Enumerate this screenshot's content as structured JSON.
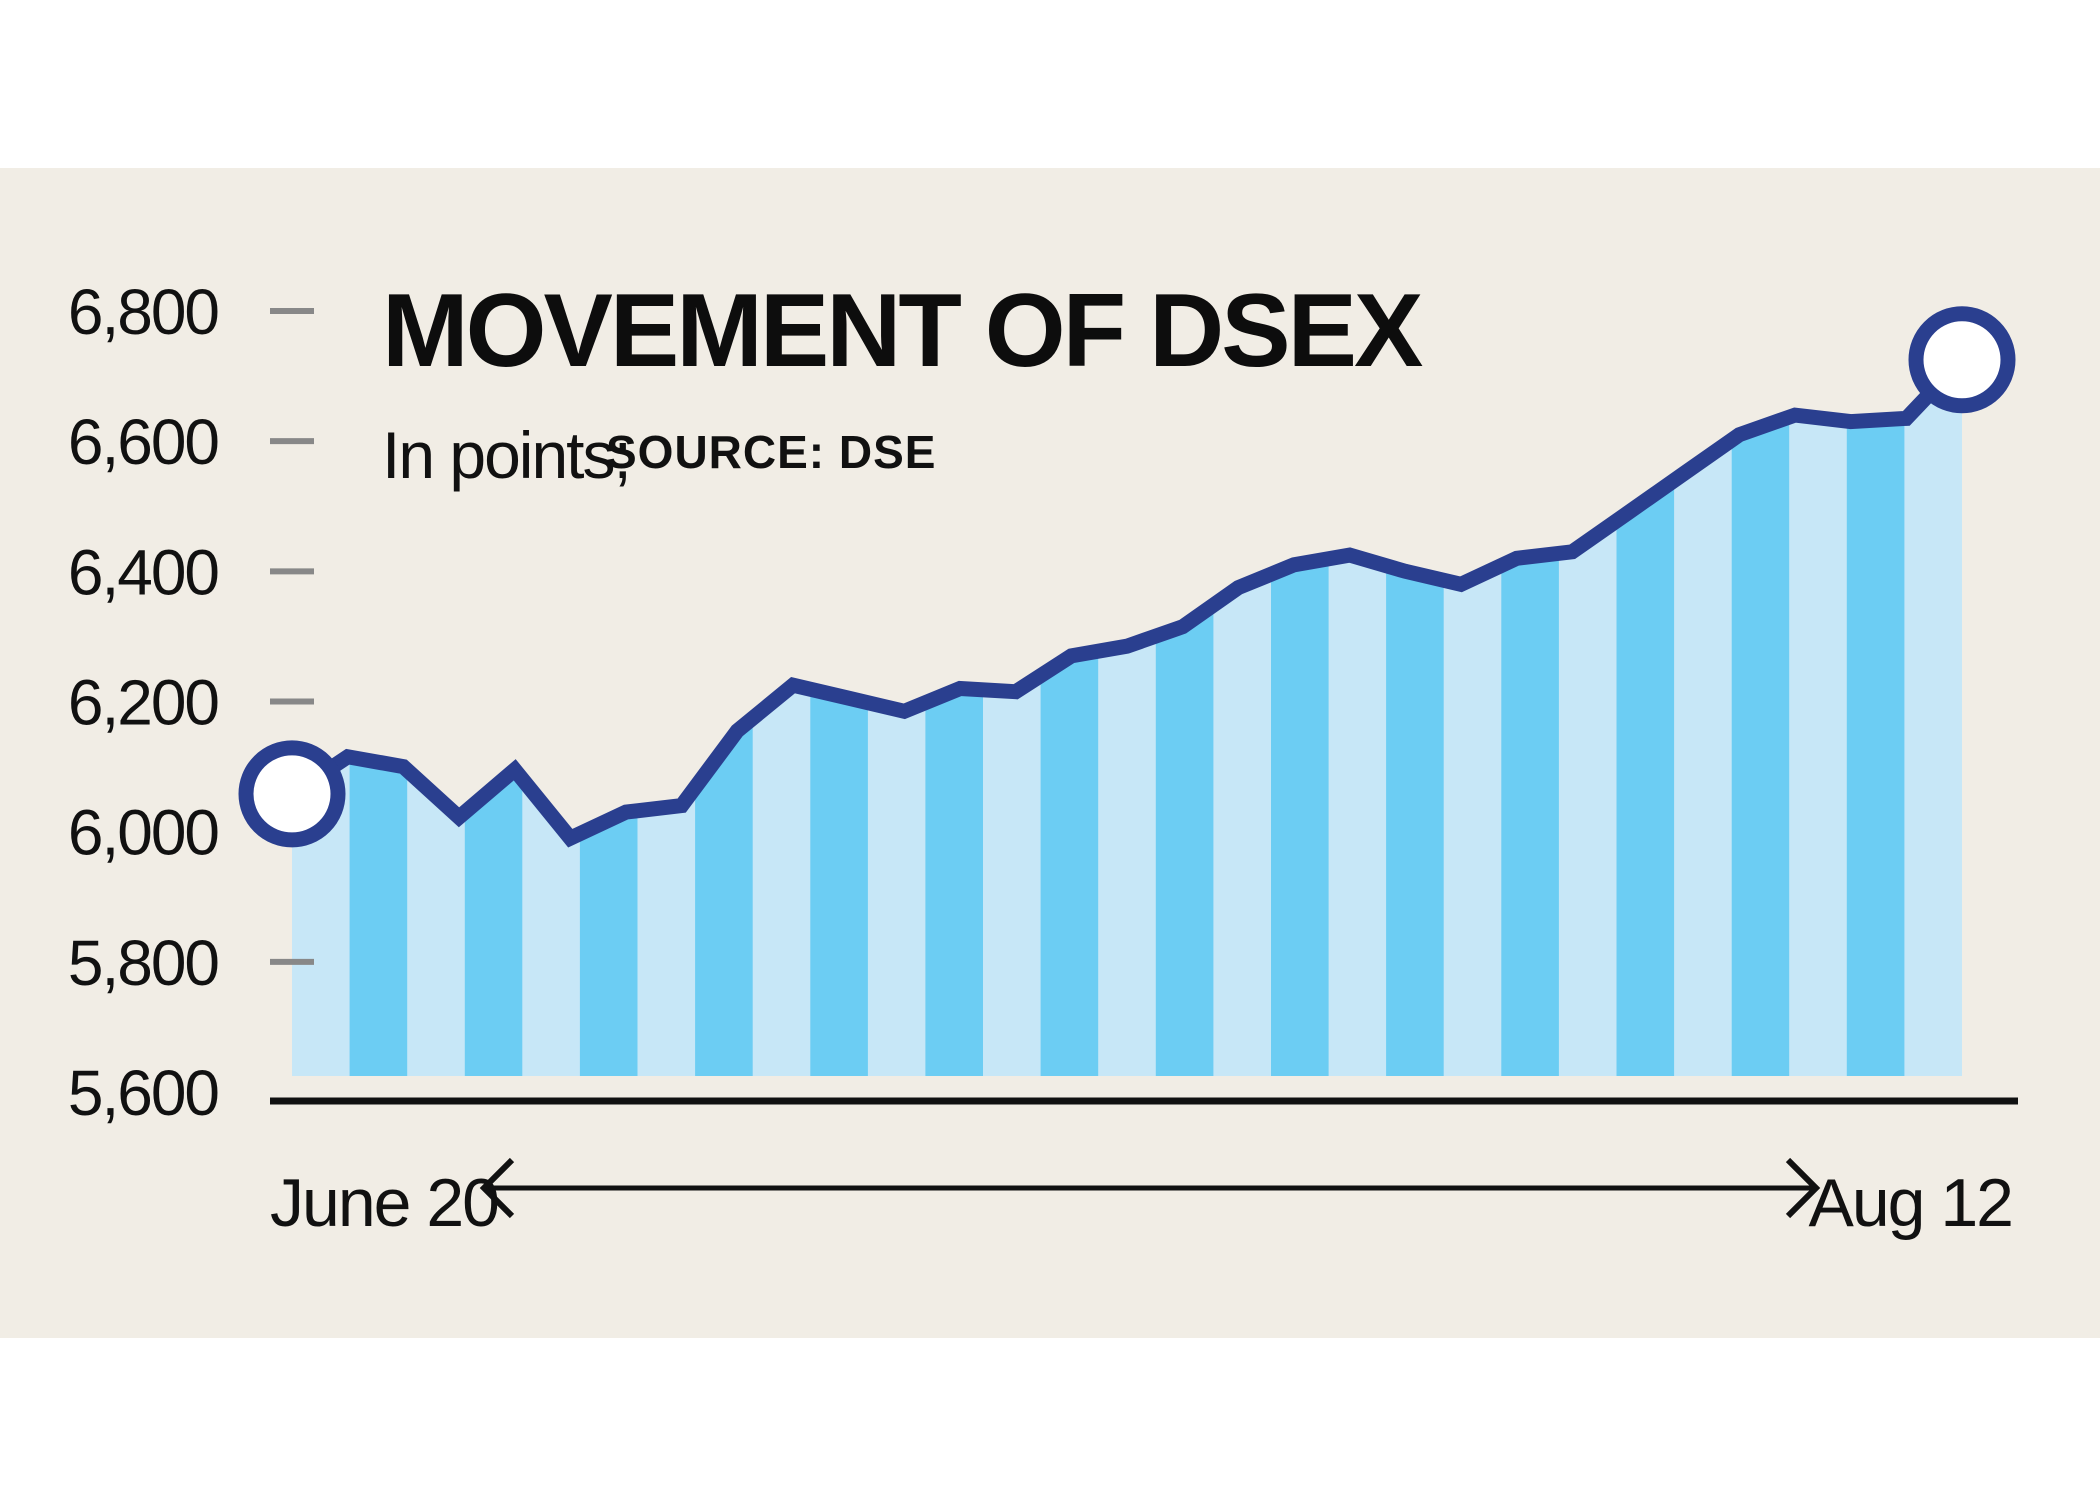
{
  "chart_data": {
    "type": "area",
    "title": "MOVEMENT OF DSEX",
    "subtitle": "In points;",
    "source": "SOURCE: DSE",
    "x_start_label": "June 20",
    "x_end_label": "Aug 12",
    "y_ticks": [
      "6,800",
      "6,600",
      "6,400",
      "6,200",
      "6,000",
      "5,800",
      "5,600"
    ],
    "y_tick_values": [
      6800,
      6600,
      6400,
      6200,
      6000,
      5800,
      5600
    ],
    "ylim": [
      5600,
      6800
    ],
    "values": [
      6058,
      6115,
      6100,
      6022,
      6095,
      5990,
      6030,
      6040,
      6155,
      6225,
      6205,
      6185,
      6220,
      6215,
      6270,
      6285,
      6315,
      6375,
      6410,
      6425,
      6400,
      6380,
      6420,
      6430,
      6490,
      6550,
      6610,
      6640,
      6630,
      6635,
      6725
    ],
    "colors": {
      "background": "#f1ede5",
      "line": "#2a3f8f",
      "stripe_light": "#c7e7f7",
      "stripe_dark": "#6ccdf3",
      "axis": "#111111",
      "tick": "#888888",
      "marker_fill": "#ffffff"
    }
  }
}
